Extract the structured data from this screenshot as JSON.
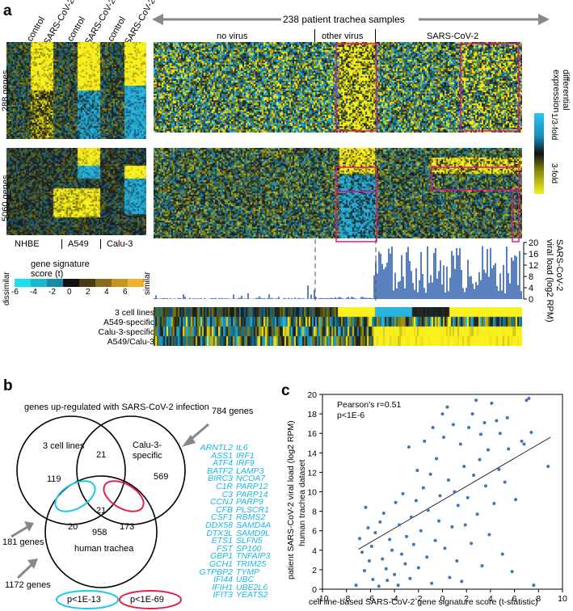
{
  "panel_labels": {
    "a": "a",
    "b": "b",
    "c": "c"
  },
  "panel_a": {
    "col_labels": [
      "control",
      "SARS-CoV-2",
      "control",
      "SARS-CoV-2",
      "control",
      "SARS-CoV-2"
    ],
    "top_span": "238 patient trachea samples",
    "groups": [
      "no virus",
      "other virus",
      "SARS-CoV-2"
    ],
    "row_labels": [
      "288 genes",
      "5060 genes"
    ],
    "cell_lines": [
      "NHBE",
      "A549",
      "Calu-3"
    ],
    "colorbar": {
      "title_lines": [
        "differential",
        "expression"
      ],
      "low": "1/3-fold",
      "high": "3-fold"
    },
    "score_legend": {
      "title_lines": [
        "gene signature",
        "score (t)"
      ],
      "ticks": [
        "-6",
        "-4",
        "-2",
        "0",
        "2",
        "4",
        "6"
      ],
      "low": "dissimilar",
      "high": "similar",
      "colors": [
        "#19e0f0",
        "#18b8d0",
        "#178aa5",
        "#111",
        "#4c3b12",
        "#8a6a1c",
        "#c5951f",
        "#f1b12a"
      ]
    },
    "viral_axis": {
      "title_lines": [
        "SARS-CoV-2",
        "viral load (log2 RPM)"
      ],
      "ticks": [
        "0",
        "4",
        "8",
        "12",
        "16",
        "20"
      ],
      "max": 20
    },
    "sig_rows": [
      "3 cell lines",
      "A549-specific",
      "Calu-3-specific",
      "A549/Calu-3"
    ],
    "bar_color": "#5a80bd"
  },
  "panel_b": {
    "title": "genes up-regulated with SARS-CoV-2 infection",
    "sets": {
      "left": "3 cell lines",
      "right_l1": "Calu-3-",
      "right_l2": "specific",
      "bottom": "human trachea"
    },
    "counts": {
      "left_only": "119",
      "left_right": "21",
      "right_only": "569",
      "center": "21",
      "left_bottom": "20",
      "right_bottom": "173",
      "bottom_only": "958"
    },
    "totals": {
      "right": "784 genes",
      "left": "181 genes",
      "bottom": "1172 genes"
    },
    "pvals": {
      "cyan": "p<1E-13",
      "red": "p<1E-69"
    },
    "gene_col1": [
      "ARNTL2",
      "ASS1",
      "ATF4",
      "BATF2",
      "BIRC3",
      "C1R",
      "C3",
      "CCNJ",
      "CFB",
      "CSF1",
      "DDX58",
      "DTX3L",
      "ETS1",
      "FST",
      "GBP1",
      "GCH1",
      "GTPBP2",
      "IFI44",
      "IFIH1",
      "IFIT3"
    ],
    "gene_col2": [
      "IL6",
      "IRF1",
      "IRF9",
      "LAMP3",
      "NCOA7",
      "PARP12",
      "PARP14",
      "PARP9",
      "PLSCR1",
      "RBMS2",
      "SAMD4A",
      "SAMD9L",
      "SLFN5",
      "SP100",
      "TNFAIP3",
      "TRIM25",
      "TYMP",
      "UBC",
      "UBE2L6",
      "YEATS2"
    ]
  },
  "chart_data": {
    "type": "scatter",
    "title": "",
    "xlabel": "cell line-based SARS-CoV-2 gene signature score (t-statistic)",
    "ylabel": "patient SARS-CoV-2 viral load (log2 RPM)",
    "ylabel2": "human trachea dataset",
    "annotation": [
      "Pearson's r=0.51",
      "p<1E-6"
    ],
    "xlim": [
      -10,
      10
    ],
    "ylim": [
      0,
      20
    ],
    "xticks": [
      -10,
      -8,
      -6,
      -4,
      -2,
      0,
      2,
      4,
      6,
      8,
      10
    ],
    "yticks": [
      0,
      2,
      4,
      6,
      8,
      10,
      12,
      14,
      16,
      18,
      20
    ],
    "fit": {
      "x": [
        -7,
        9
      ],
      "y": [
        4.1,
        15.6
      ]
    },
    "point_color": "#3f76b5",
    "points": [
      [
        -7.2,
        0.4
      ],
      [
        -6.9,
        5.2
      ],
      [
        -6.7,
        3.8
      ],
      [
        -6.5,
        1.9
      ],
      [
        -6.4,
        8.4
      ],
      [
        -6.2,
        6.3
      ],
      [
        -6.1,
        2.9
      ],
      [
        -5.9,
        4.4
      ],
      [
        -5.8,
        1.0
      ],
      [
        -5.6,
        5.8
      ],
      [
        -5.3,
        0.3
      ],
      [
        -5.2,
        6.9
      ],
      [
        -5.0,
        3.1
      ],
      [
        -4.9,
        7.8
      ],
      [
        -4.7,
        2.1
      ],
      [
        -4.6,
        0.9
      ],
      [
        -4.4,
        5.1
      ],
      [
        -4.2,
        4.0
      ],
      [
        -4.0,
        1.5
      ],
      [
        -3.9,
        8.9
      ],
      [
        -3.7,
        0.4
      ],
      [
        -3.6,
        6.6
      ],
      [
        -3.4,
        3.6
      ],
      [
        -3.3,
        9.8
      ],
      [
        -3.1,
        2.6
      ],
      [
        -3.0,
        5.4
      ],
      [
        -2.8,
        14.6
      ],
      [
        -2.7,
        1.1
      ],
      [
        -2.6,
        7.4
      ],
      [
        -2.4,
        4.6
      ],
      [
        -2.2,
        9.1
      ],
      [
        -2.1,
        12.2
      ],
      [
        -2.0,
        2.2
      ],
      [
        -1.8,
        6.0
      ],
      [
        -1.6,
        10.4
      ],
      [
        -1.5,
        15.2
      ],
      [
        -1.3,
        3.3
      ],
      [
        -1.2,
        8.1
      ],
      [
        -1.0,
        11.8
      ],
      [
        -0.9,
        0.6
      ],
      [
        -0.8,
        16.6
      ],
      [
        -0.6,
        5.0
      ],
      [
        -0.5,
        13.4
      ],
      [
        -0.3,
        7.0
      ],
      [
        -0.2,
        9.6
      ],
      [
        0.0,
        18.0
      ],
      [
        0.1,
        15.6
      ],
      [
        0.2,
        4.2
      ],
      [
        0.4,
        18.7
      ],
      [
        0.5,
        11.2
      ],
      [
        0.6,
        1.2
      ],
      [
        0.8,
        6.4
      ],
      [
        0.9,
        16.9
      ],
      [
        1.0,
        10.0
      ],
      [
        1.2,
        2.9
      ],
      [
        1.3,
        8.6
      ],
      [
        1.5,
        14.9
      ],
      [
        1.6,
        0.8
      ],
      [
        1.8,
        12.6
      ],
      [
        1.9,
        6.6
      ],
      [
        2.1,
        9.4
      ],
      [
        2.2,
        16.6
      ],
      [
        2.4,
        4.7
      ],
      [
        2.5,
        18.0
      ],
      [
        2.6,
        11.7
      ],
      [
        2.8,
        19.4
      ],
      [
        2.9,
        7.7
      ],
      [
        3.1,
        13.3
      ],
      [
        3.2,
        15.9
      ],
      [
        3.3,
        2.4
      ],
      [
        3.5,
        17.1
      ],
      [
        3.6,
        10.6
      ],
      [
        3.8,
        14.3
      ],
      [
        3.9,
        5.6
      ],
      [
        4.1,
        19.1
      ],
      [
        4.3,
        8.8
      ],
      [
        4.5,
        17.3
      ],
      [
        4.7,
        12.3
      ],
      [
        4.8,
        16.0
      ],
      [
        5.0,
        3.6
      ],
      [
        5.2,
        11.0
      ],
      [
        5.4,
        17.6
      ],
      [
        5.5,
        14.4
      ],
      [
        5.8,
        1.8
      ],
      [
        6.1,
        9.2
      ],
      [
        6.6,
        15.2
      ],
      [
        6.8,
        14.9
      ],
      [
        7.0,
        19.4
      ],
      [
        7.2,
        19.6
      ],
      [
        7.4,
        16.1
      ],
      [
        7.6,
        0.4
      ],
      [
        8.8,
        12.6
      ]
    ]
  }
}
